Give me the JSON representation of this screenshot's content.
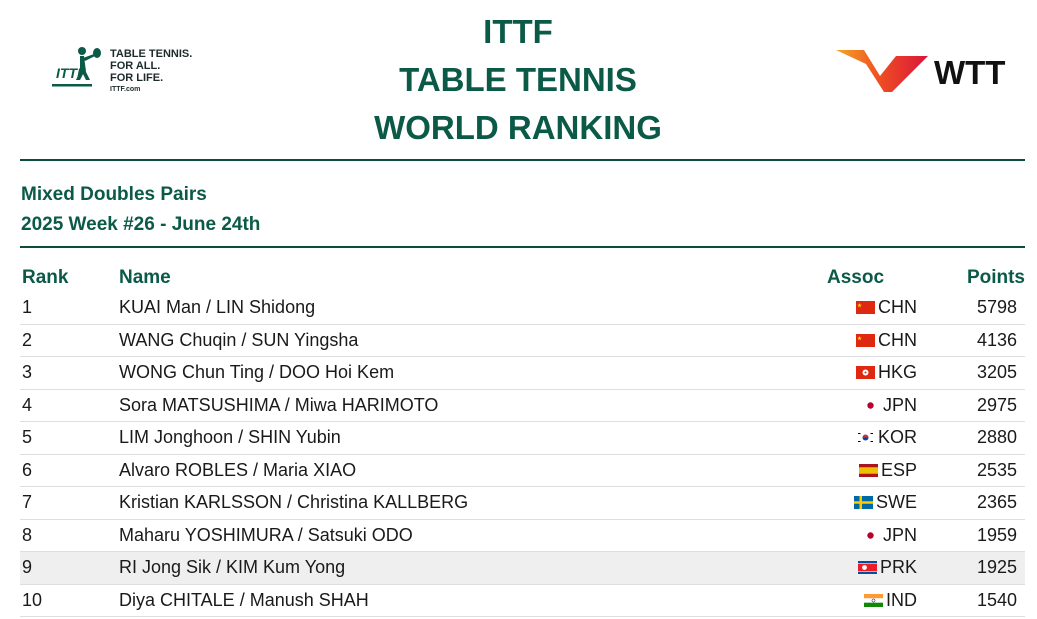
{
  "logos": {
    "ittf": {
      "lines": [
        "TABLE TENNIS.",
        "FOR ALL.",
        "FOR LIFE."
      ],
      "url": "ITTF.com"
    },
    "wtt": {
      "text": "WTT"
    }
  },
  "title": [
    "ITTF",
    "TABLE TENNIS",
    "WORLD RANKING"
  ],
  "subtitle": [
    "Mixed Doubles Pairs",
    "2025 Week #26 - June 24th"
  ],
  "columns": {
    "rank": "Rank",
    "name": "Name",
    "assoc": "Assoc",
    "points": "Points"
  },
  "highlight_row": 8,
  "rows": [
    {
      "rank": "1",
      "name": "KUAI Man / LIN Shidong",
      "assoc": "CHN",
      "flag": "china-flag-icon",
      "points": "5798"
    },
    {
      "rank": "2",
      "name": "WANG Chuqin / SUN Yingsha",
      "assoc": "CHN",
      "flag": "china-flag-icon",
      "points": "4136"
    },
    {
      "rank": "3",
      "name": "WONG Chun Ting / DOO Hoi Kem",
      "assoc": "HKG",
      "flag": "hong-kong-flag-icon",
      "points": "3205"
    },
    {
      "rank": "4",
      "name": "Sora MATSUSHIMA / Miwa HARIMOTO",
      "assoc": "JPN",
      "flag": "japan-flag-icon",
      "points": "2975"
    },
    {
      "rank": "5",
      "name": "LIM Jonghoon / SHIN Yubin",
      "assoc": "KOR",
      "flag": "korea-flag-icon",
      "points": "2880"
    },
    {
      "rank": "6",
      "name": "Alvaro ROBLES / Maria XIAO",
      "assoc": "ESP",
      "flag": "spain-flag-icon",
      "points": "2535"
    },
    {
      "rank": "7",
      "name": "Kristian KARLSSON / Christina KALLBERG",
      "assoc": "SWE",
      "flag": "sweden-flag-icon",
      "points": "2365"
    },
    {
      "rank": "8",
      "name": "Maharu YOSHIMURA / Satsuki ODO",
      "assoc": "JPN",
      "flag": "japan-flag-icon",
      "points": "1959"
    },
    {
      "rank": "9",
      "name": "RI Jong Sik / KIM Kum Yong",
      "assoc": "PRK",
      "flag": "north-korea-flag-icon",
      "points": "1925"
    },
    {
      "rank": "10",
      "name": "Diya CHITALE / Manush SHAH",
      "assoc": "IND",
      "flag": "india-flag-icon",
      "points": "1540"
    }
  ],
  "colors": {
    "brand_green": "#0b5a47",
    "rule": "#0b4d3c",
    "highlight": "#efefef"
  }
}
